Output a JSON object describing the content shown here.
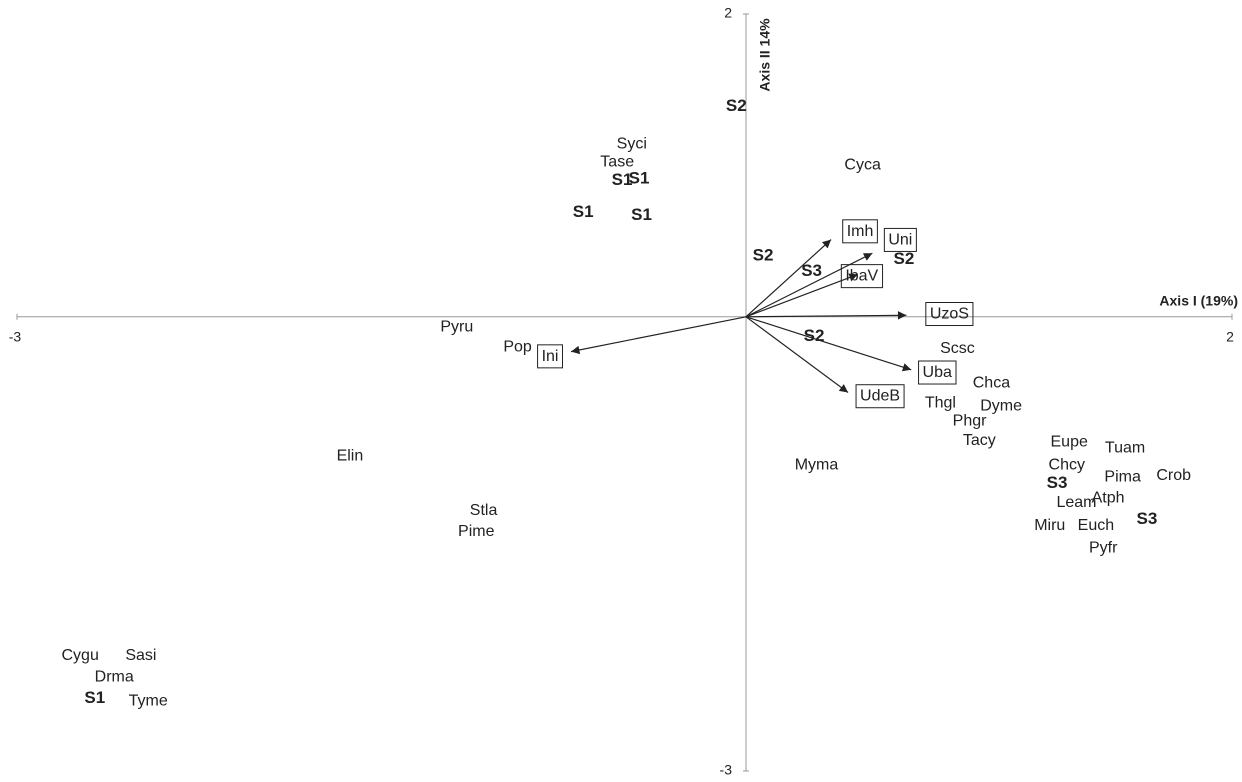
{
  "chart_data": {
    "type": "biplot",
    "x_label": "Axis I (19%)",
    "y_label": "Axis II 14%",
    "xlim": [
      -3,
      2
    ],
    "ylim": [
      -3,
      2
    ],
    "xticks": [
      -3,
      2
    ],
    "yticks": [
      -3,
      2
    ],
    "species": {
      "labels": [
        "Syci",
        "Tase",
        "Cyca",
        "Pyru",
        "Pop",
        "Scsc",
        "Chca",
        "Thgl",
        "Dyme",
        "Phgr",
        "Tacy",
        "Elin",
        "Myma",
        "Eupe",
        "Tuam",
        "Chcy",
        "Pima",
        "Crob",
        "Leam",
        "Atph",
        "Stla",
        "Miru",
        "Euch",
        "Pime",
        "Pyfr",
        "Cygu",
        "Sasi",
        "Drma",
        "Tyme"
      ],
      "x": [
        -0.47,
        -0.53,
        0.48,
        -1.19,
        -0.94,
        0.87,
        1.01,
        0.8,
        1.05,
        0.92,
        0.96,
        -1.63,
        0.29,
        1.33,
        1.56,
        1.32,
        1.55,
        1.76,
        1.36,
        1.49,
        -1.08,
        1.25,
        1.44,
        -1.11,
        1.47,
        -2.74,
        -2.49,
        -2.6,
        -2.46
      ],
      "y": [
        1.14,
        1.02,
        1.0,
        -0.07,
        -0.2,
        -0.21,
        -0.44,
        -0.57,
        -0.59,
        -0.69,
        -0.82,
        -0.92,
        -0.98,
        -0.83,
        -0.87,
        -0.98,
        -1.06,
        -1.05,
        -1.23,
        -1.2,
        -1.28,
        -1.38,
        -1.38,
        -1.42,
        -1.53,
        -2.24,
        -2.24,
        -2.38,
        -2.54
      ]
    },
    "samples": {
      "labels": [
        "S2",
        "S1",
        "S1",
        "S1",
        "S1",
        "S2",
        "S3",
        "S2",
        "S2",
        "S3",
        "S3",
        "S1"
      ],
      "x": [
        -0.04,
        -0.51,
        -0.44,
        -0.67,
        -0.43,
        0.07,
        0.27,
        0.65,
        0.28,
        1.28,
        1.65,
        -2.68
      ],
      "y": [
        1.39,
        0.9,
        0.91,
        0.69,
        0.67,
        0.4,
        0.3,
        0.38,
        -0.13,
        -1.1,
        -1.34,
        -2.52
      ]
    },
    "variables": {
      "labels": [
        "Imh",
        "Uni",
        "IbaV",
        "UzoS",
        "Ini",
        "Uba",
        "UdeB"
      ],
      "x": [
        0.35,
        0.52,
        0.46,
        0.66,
        -0.72,
        0.68,
        0.42
      ],
      "y": [
        0.51,
        0.42,
        0.28,
        0.01,
        -0.23,
        -0.35,
        -0.5
      ]
    },
    "color": "#222222"
  }
}
